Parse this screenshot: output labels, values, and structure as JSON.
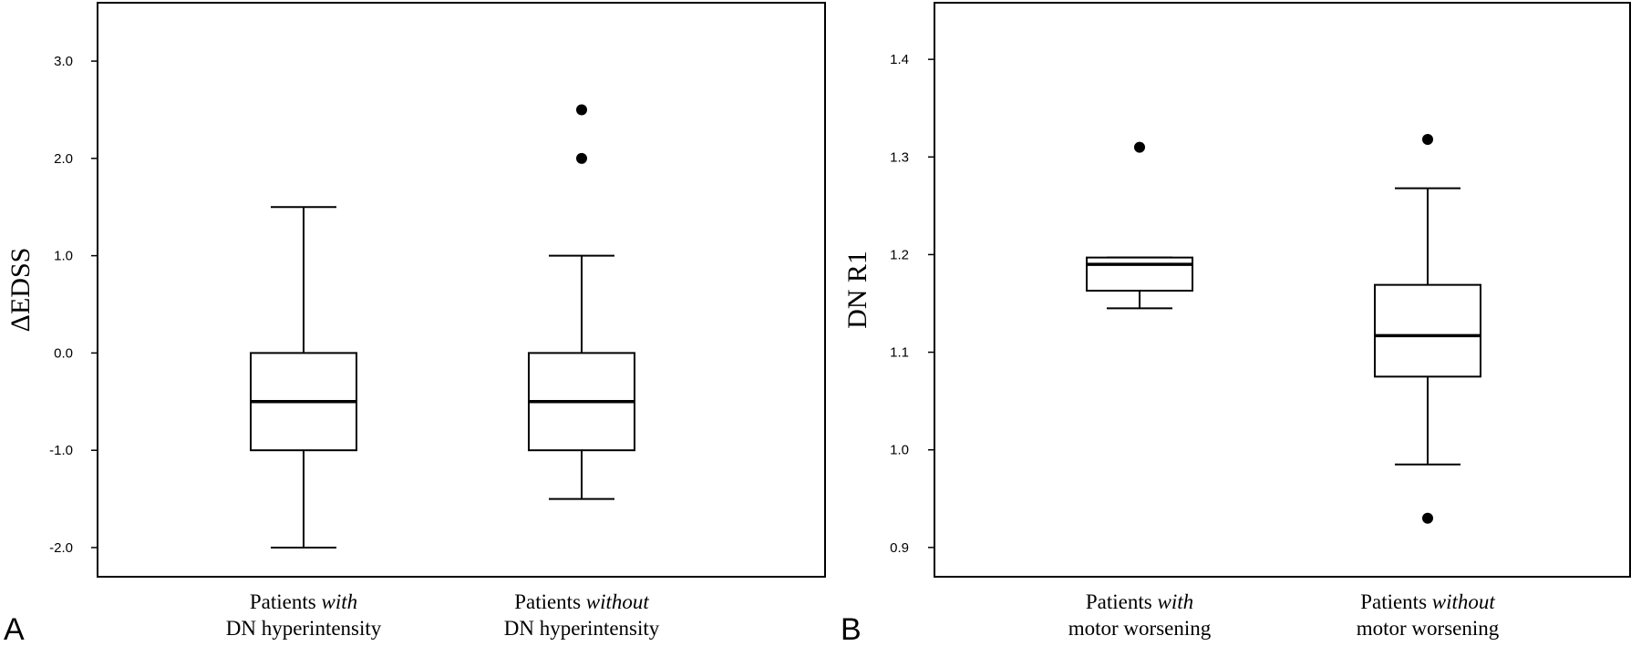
{
  "chart_data": [
    {
      "panel": "A",
      "type": "box",
      "ylabel": "ΔEDSS",
      "ylim": [
        -2.3,
        3.6
      ],
      "yticks": [
        3.0,
        2.0,
        1.0,
        0.0,
        -1.0,
        -2.0
      ],
      "ytick_labels": [
        "3.0",
        "2.0",
        "1.0",
        "0.0",
        "-1.0",
        "-2.0"
      ],
      "categories": [
        {
          "prefix": "Patients ",
          "emph": "with",
          "line2": "DN hyperintensity"
        },
        {
          "prefix": "Patients ",
          "emph": "without",
          "line2": "DN hyperintensity"
        }
      ],
      "series": [
        {
          "whisker_low": -2.0,
          "q1": -1.0,
          "median": -0.5,
          "q3": 0.0,
          "whisker_high": 1.5,
          "outliers": []
        },
        {
          "whisker_low": -1.5,
          "q1": -1.0,
          "median": -0.5,
          "q3": 0.0,
          "whisker_high": 1.0,
          "outliers": [
            2.0,
            2.5
          ]
        }
      ]
    },
    {
      "panel": "B",
      "type": "box",
      "ylabel": "DN R1",
      "ylim": [
        0.87,
        1.458
      ],
      "yticks": [
        1.4,
        1.3,
        1.2,
        1.1,
        1.0,
        0.9
      ],
      "ytick_labels": [
        "1.4",
        "1.3",
        "1.2",
        "1.1",
        "1.0",
        "0.9"
      ],
      "categories": [
        {
          "prefix": "Patients ",
          "emph": "with",
          "line2": "motor worsening"
        },
        {
          "prefix": "Patients ",
          "emph": "without",
          "line2": "motor worsening"
        }
      ],
      "series": [
        {
          "whisker_low": 1.145,
          "q1": 1.163,
          "median": 1.19,
          "q3": 1.197,
          "whisker_high": 1.197,
          "outliers": [
            1.31
          ]
        },
        {
          "whisker_low": 0.985,
          "q1": 1.075,
          "median": 1.117,
          "q3": 1.169,
          "whisker_high": 1.268,
          "outliers": [
            0.93,
            1.318
          ]
        }
      ]
    }
  ]
}
